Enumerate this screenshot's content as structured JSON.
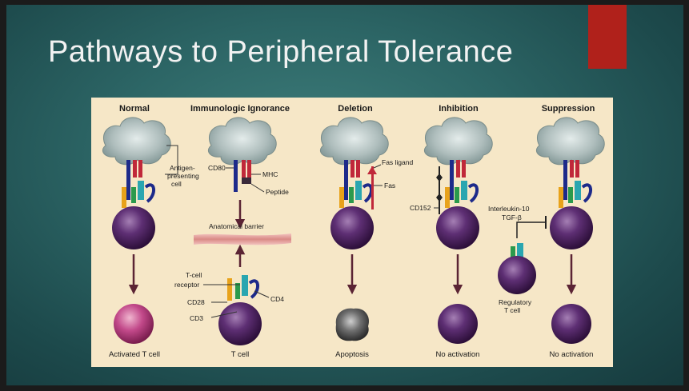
{
  "slide": {
    "title": "Pathways to Peripheral Tolerance",
    "accent_color": "#b0211b",
    "background": "#2c6565"
  },
  "diagram": {
    "columns": [
      {
        "heading": "Normal",
        "outcome": "Activated T cell"
      },
      {
        "heading": "Immunologic Ignorance",
        "outcome": "T cell"
      },
      {
        "heading": "Deletion",
        "outcome": "Apoptosis"
      },
      {
        "heading": "Inhibition",
        "outcome": "No activation"
      },
      {
        "heading": "Suppression",
        "outcome": "No activation"
      }
    ],
    "labels": {
      "apc_line1": "Antigen-",
      "apc_line2": "presenting",
      "apc_line3": "cell",
      "cd80": "CD80",
      "mhc": "MHC",
      "peptide": "Peptide",
      "barrier": "Anatomical barrier",
      "tcr_line1": "T-cell",
      "tcr_line2": "receptor",
      "cd28": "CD28",
      "cd3": "CD3",
      "cd4": "CD4",
      "fas_ligand": "Fas ligand",
      "fas": "Fas",
      "cd152": "CD152",
      "il10": "Interleukin-10",
      "tgf": "TGF-β",
      "treg_line1": "Regulatory",
      "treg_line2": "T cell"
    }
  }
}
